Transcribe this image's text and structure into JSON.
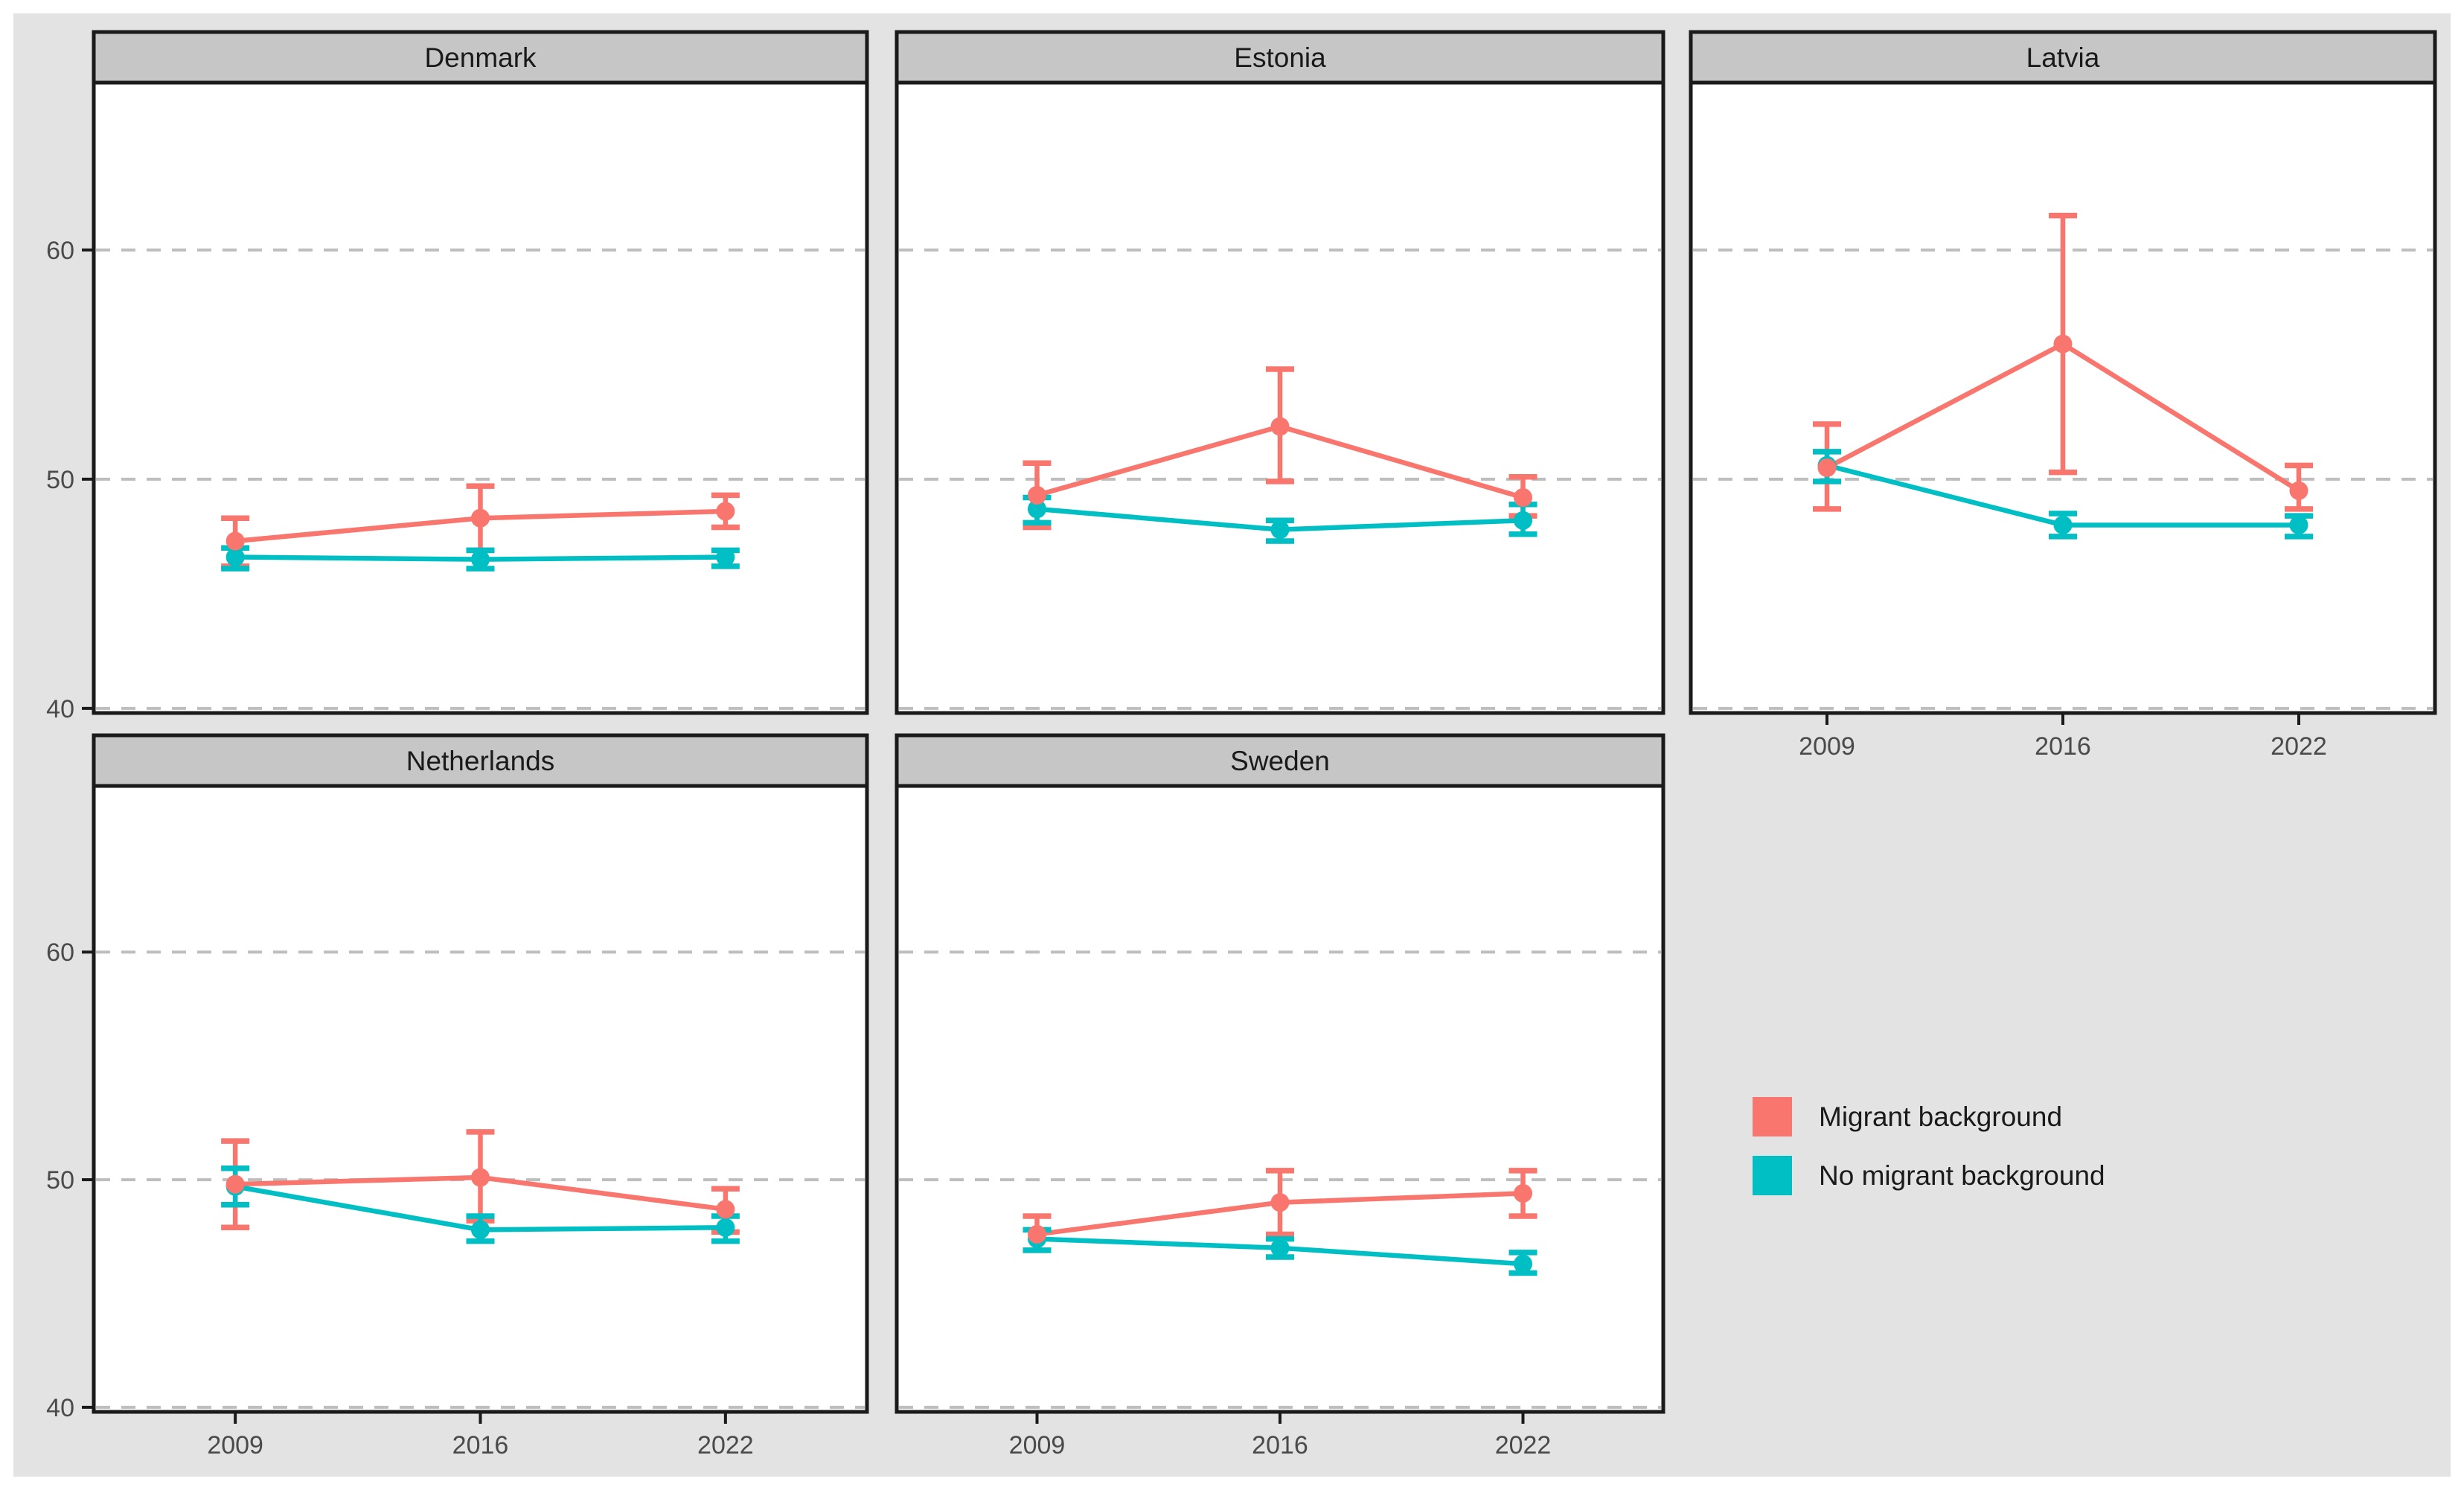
{
  "chart_data": {
    "type": "line",
    "title": "",
    "x_categories": [
      "2009",
      "2016",
      "2022"
    ],
    "y_ticks": [
      40,
      50,
      60
    ],
    "ylim": [
      39.8,
      67.3
    ],
    "grid": "horizontal-dashed",
    "legend_position": "right-middle",
    "legend": [
      {
        "name": "Migrant background",
        "color": "#F8766D"
      },
      {
        "name": "No migrant background",
        "color": "#00BFC4"
      }
    ],
    "facets": [
      {
        "title": "Denmark",
        "row": 0,
        "col": 0,
        "series": [
          {
            "name": "Migrant background",
            "values": [
              {
                "x": "2009",
                "y": 47.3,
                "ymin": 46.2,
                "ymax": 48.3
              },
              {
                "x": "2016",
                "y": 48.3,
                "ymin": 46.9,
                "ymax": 49.7
              },
              {
                "x": "2022",
                "y": 48.6,
                "ymin": 47.9,
                "ymax": 49.3
              }
            ]
          },
          {
            "name": "No migrant background",
            "values": [
              {
                "x": "2009",
                "y": 46.6,
                "ymin": 46.1,
                "ymax": 47.0
              },
              {
                "x": "2016",
                "y": 46.5,
                "ymin": 46.1,
                "ymax": 46.9
              },
              {
                "x": "2022",
                "y": 46.6,
                "ymin": 46.2,
                "ymax": 46.9
              }
            ]
          }
        ]
      },
      {
        "title": "Estonia",
        "row": 0,
        "col": 1,
        "series": [
          {
            "name": "Migrant background",
            "values": [
              {
                "x": "2009",
                "y": 49.3,
                "ymin": 47.9,
                "ymax": 50.7
              },
              {
                "x": "2016",
                "y": 52.3,
                "ymin": 49.9,
                "ymax": 54.8
              },
              {
                "x": "2022",
                "y": 49.2,
                "ymin": 48.4,
                "ymax": 50.1
              }
            ]
          },
          {
            "name": "No migrant background",
            "values": [
              {
                "x": "2009",
                "y": 48.7,
                "ymin": 48.1,
                "ymax": 49.2
              },
              {
                "x": "2016",
                "y": 47.8,
                "ymin": 47.3,
                "ymax": 48.2
              },
              {
                "x": "2022",
                "y": 48.2,
                "ymin": 47.6,
                "ymax": 48.9
              }
            ]
          }
        ]
      },
      {
        "title": "Latvia",
        "row": 0,
        "col": 2,
        "series": [
          {
            "name": "Migrant background",
            "values": [
              {
                "x": "2009",
                "y": 50.5,
                "ymin": 48.7,
                "ymax": 52.4
              },
              {
                "x": "2016",
                "y": 55.9,
                "ymin": 50.3,
                "ymax": 61.5
              },
              {
                "x": "2022",
                "y": 49.5,
                "ymin": 48.7,
                "ymax": 50.6
              }
            ]
          },
          {
            "name": "No migrant background",
            "values": [
              {
                "x": "2009",
                "y": 50.6,
                "ymin": 49.9,
                "ymax": 51.2
              },
              {
                "x": "2016",
                "y": 48.0,
                "ymin": 47.5,
                "ymax": 48.5
              },
              {
                "x": "2022",
                "y": 48.0,
                "ymin": 47.5,
                "ymax": 48.4
              }
            ]
          }
        ]
      },
      {
        "title": "Netherlands",
        "row": 1,
        "col": 0,
        "series": [
          {
            "name": "Migrant background",
            "values": [
              {
                "x": "2009",
                "y": 49.8,
                "ymin": 47.9,
                "ymax": 51.7
              },
              {
                "x": "2016",
                "y": 50.1,
                "ymin": 48.2,
                "ymax": 52.1
              },
              {
                "x": "2022",
                "y": 48.7,
                "ymin": 47.7,
                "ymax": 49.6
              }
            ]
          },
          {
            "name": "No migrant background",
            "values": [
              {
                "x": "2009",
                "y": 49.7,
                "ymin": 48.9,
                "ymax": 50.5
              },
              {
                "x": "2016",
                "y": 47.8,
                "ymin": 47.3,
                "ymax": 48.4
              },
              {
                "x": "2022",
                "y": 47.9,
                "ymin": 47.3,
                "ymax": 48.4
              }
            ]
          }
        ]
      },
      {
        "title": "Sweden",
        "row": 1,
        "col": 1,
        "series": [
          {
            "name": "Migrant background",
            "values": [
              {
                "x": "2009",
                "y": 47.6,
                "ymin": 46.9,
                "ymax": 48.4
              },
              {
                "x": "2016",
                "y": 49.0,
                "ymin": 47.6,
                "ymax": 50.4
              },
              {
                "x": "2022",
                "y": 49.4,
                "ymin": 48.4,
                "ymax": 50.4
              }
            ]
          },
          {
            "name": "No migrant background",
            "values": [
              {
                "x": "2009",
                "y": 47.4,
                "ymin": 46.9,
                "ymax": 47.8
              },
              {
                "x": "2016",
                "y": 47.0,
                "ymin": 46.6,
                "ymax": 47.4
              },
              {
                "x": "2022",
                "y": 46.3,
                "ymin": 45.9,
                "ymax": 46.8
              }
            ]
          }
        ]
      }
    ]
  },
  "colors": {
    "background": "#E3E3E3",
    "panel": "#FFFFFF",
    "strip_fill": "#C6C6C6",
    "border": "#1A1A1A",
    "gridline": "#BEBEBE",
    "tick_text": "#4A4A4A",
    "strip_text": "#1A1A1A"
  }
}
